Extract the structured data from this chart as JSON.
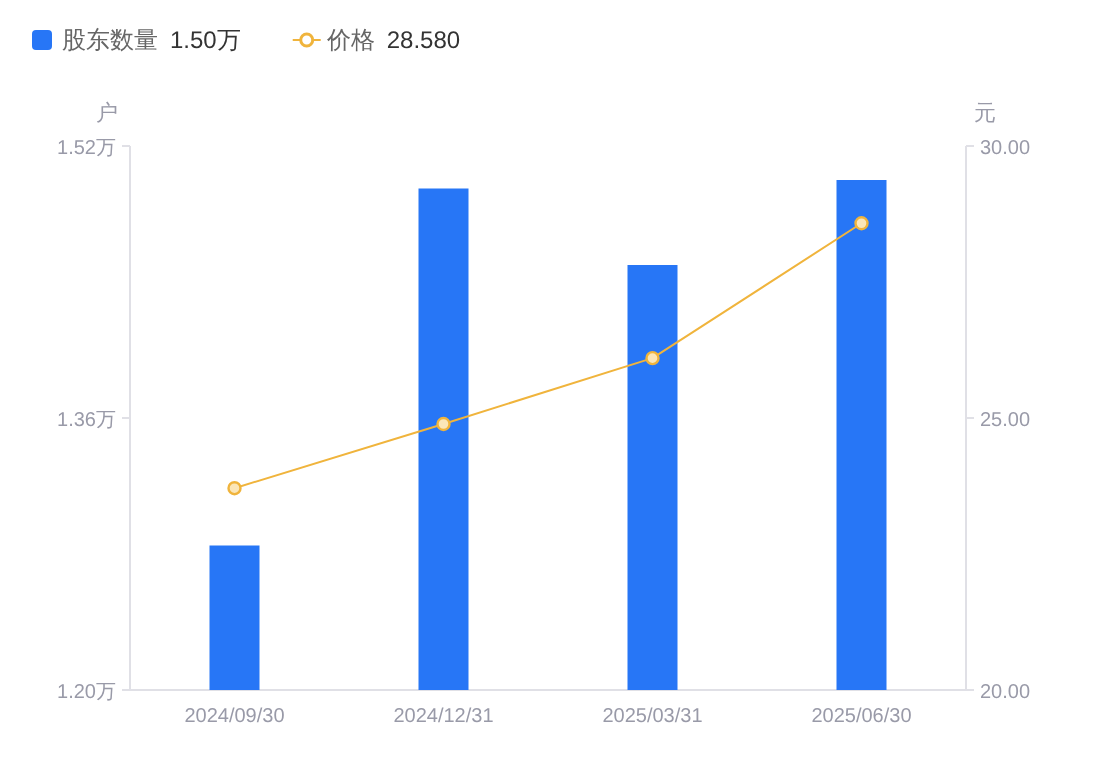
{
  "chart_data": {
    "type": "bar",
    "ylabel": "户",
    "y2label": "元",
    "categories": [
      "2024/09/30",
      "2024/12/31",
      "2025/03/31",
      "2025/06/30"
    ],
    "series": [
      {
        "name": "股东数量",
        "color": "#2776f6",
        "values": [
          1.285,
          1.495,
          1.45,
          1.5
        ]
      },
      {
        "name": "价格",
        "type": "line",
        "axis": "y2",
        "color": "#f0b43c",
        "marker": "circle",
        "values": [
          23.71,
          24.89,
          26.1,
          28.58
        ]
      }
    ],
    "ylim": [
      1.2,
      1.52
    ],
    "yticks": [
      {
        "value": 1.2,
        "label": "1.20万"
      },
      {
        "value": 1.36,
        "label": "1.36万"
      },
      {
        "value": 1.52,
        "label": "1.52万"
      }
    ],
    "y2lim": [
      20,
      30
    ],
    "y2ticks": [
      {
        "value": 20,
        "label": "20.00"
      },
      {
        "value": 25,
        "label": "25.00"
      },
      {
        "value": 30,
        "label": "30.00"
      }
    ],
    "legend": "top left",
    "annotations": [
      "1.50万",
      "28.580"
    ]
  }
}
